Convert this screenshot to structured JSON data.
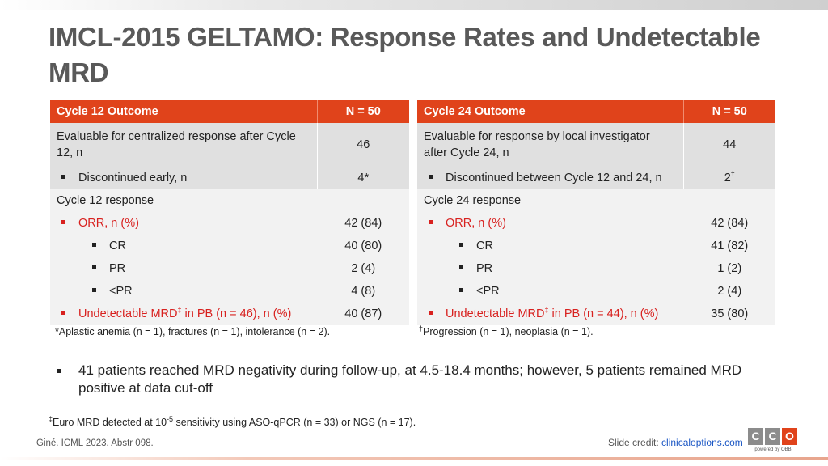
{
  "title": "IMCL-2015 GELTAMO: Response Rates and Undetectable MRD",
  "left_table": {
    "header_label": "Cycle 12 Outcome",
    "header_value": "N = 50",
    "rows": [
      {
        "label": "Evaluable for centralized response after Cycle 12, n",
        "value": "46"
      },
      {
        "label": "Discontinued early, n",
        "value": "4*"
      },
      {
        "label": "Cycle 12 response",
        "value": ""
      },
      {
        "label": "ORR, n (%)",
        "value": "42 (84)"
      },
      {
        "label": "CR",
        "value": "40 (80)"
      },
      {
        "label": "PR",
        "value": "2 (4)"
      },
      {
        "label": "<PR",
        "value": "4 (8)"
      },
      {
        "label_pre": "Undetectable MRD",
        "label_sup": "‡",
        "label_post": " in PB (n = 46), n (%)",
        "value": "40 (87)"
      }
    ],
    "footnote": "*Aplastic anemia (n = 1), fractures (n = 1), intolerance (n = 2)."
  },
  "right_table": {
    "header_label": "Cycle 24 Outcome",
    "header_value": "N = 50",
    "rows": [
      {
        "label": "Evaluable for response by local investigator after Cycle 24, n",
        "value": "44"
      },
      {
        "label": "Discontinued between Cycle 12 and 24, n",
        "value": "2",
        "value_sup": "†"
      },
      {
        "label": "Cycle 24 response",
        "value": ""
      },
      {
        "label": "ORR, n (%)",
        "value": "42 (84)"
      },
      {
        "label": "CR",
        "value": "41 (82)"
      },
      {
        "label": "PR",
        "value": "1 (2)"
      },
      {
        "label": "<PR",
        "value": "2 (4)"
      },
      {
        "label_pre": "Undetectable MRD",
        "label_sup": "‡",
        "label_post": " in PB (n = 44), n (%)",
        "value": "35 (80)"
      }
    ],
    "footnote_sup": "†",
    "footnote": "Progression (n = 1), neoplasia (n = 1)."
  },
  "main_bullet": "41 patients reached MRD negativity during follow-up, at 4.5-18.4 months; however, 5 patients remained MRD positive at data cut-off",
  "mrd_footnote": {
    "sup": "‡",
    "pre": "Euro MRD detected at 10",
    "exp": "-5",
    "post": " sensitivity using ASO-qPCR (n = 33) or NGS (n = 17)."
  },
  "citation": "Giné. ICML 2023. Abstr 098.",
  "credit": {
    "prefix": "Slide credit: ",
    "link": "clinicaloptions.com"
  },
  "logo": {
    "letters": [
      "C",
      "C",
      "O"
    ],
    "tagline": "powered by OBB"
  },
  "colors": {
    "accent": "#e0431b",
    "red_text": "#d8211f",
    "grey_row": "#e0e0e0",
    "light_row": "#f2f2f2",
    "logo_grey": "#8c8c8c"
  }
}
